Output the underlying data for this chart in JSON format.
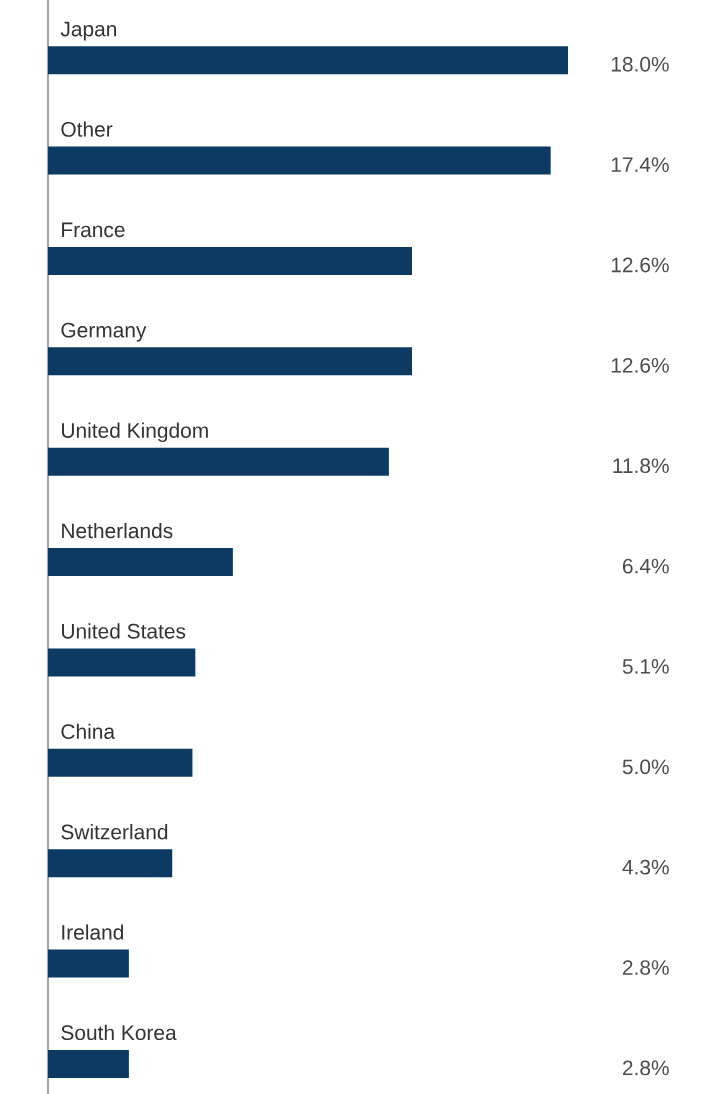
{
  "chart_data": {
    "type": "bar",
    "orientation": "horizontal",
    "categories": [
      "Japan",
      "Other",
      "France",
      "Germany",
      "United Kingdom",
      "Netherlands",
      "United States",
      "China",
      "Switzerland",
      "Ireland",
      "South Korea"
    ],
    "values": [
      18.0,
      17.4,
      12.6,
      12.6,
      11.8,
      6.4,
      5.1,
      5.0,
      4.3,
      2.8,
      2.8
    ],
    "value_labels": [
      "18.0%",
      "17.4%",
      "12.6%",
      "12.6%",
      "11.8%",
      "6.4%",
      "5.1%",
      "5.0%",
      "4.3%",
      "2.8%",
      "2.8%"
    ],
    "color": "#0c3a62"
  }
}
